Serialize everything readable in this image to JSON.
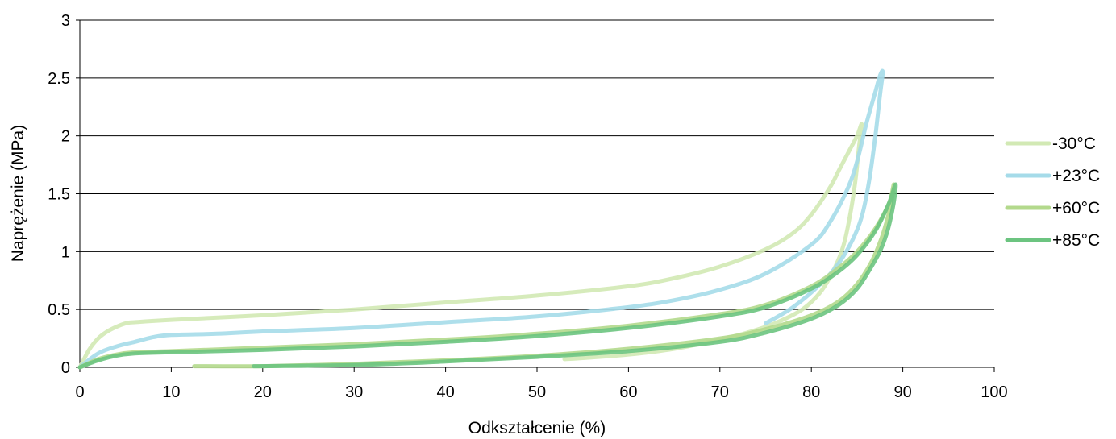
{
  "chart_data": {
    "type": "line",
    "title": "",
    "xlabel": "Odkształcenie (%)",
    "ylabel": "Naprężenie (MPa)",
    "xlim": [
      0,
      100
    ],
    "ylim": [
      0,
      3
    ],
    "x_ticks": [
      0,
      10,
      20,
      30,
      40,
      50,
      60,
      70,
      80,
      90,
      100
    ],
    "x_tick_labels": [
      "0",
      "10",
      "20",
      "30",
      "40",
      "50",
      "60",
      "70",
      "80",
      "90",
      "100"
    ],
    "y_ticks": [
      0,
      0.5,
      1,
      1.5,
      2,
      2.5,
      3
    ],
    "y_tick_labels": [
      "0",
      "0.5",
      "1",
      "1.5",
      "2",
      "2.5",
      "3"
    ],
    "grid": "horizontal",
    "legend_position": "right",
    "series": [
      {
        "name": "-30°C",
        "color": "#d2e9b4",
        "x": [
          0,
          1,
          2,
          3,
          4,
          5,
          6,
          10,
          20,
          30,
          40,
          50,
          60,
          65,
          70,
          75,
          78,
          80,
          82,
          83,
          84,
          85,
          85.5,
          85.2,
          84.8,
          84.2,
          83.5,
          82.5,
          81,
          79,
          76,
          73,
          70,
          65,
          60,
          55,
          53
        ],
        "y": [
          0,
          0.15,
          0.25,
          0.31,
          0.35,
          0.38,
          0.39,
          0.41,
          0.45,
          0.5,
          0.56,
          0.62,
          0.7,
          0.77,
          0.87,
          1.02,
          1.16,
          1.32,
          1.55,
          1.7,
          1.85,
          2.0,
          2.1,
          1.9,
          1.6,
          1.3,
          1.05,
          0.85,
          0.65,
          0.5,
          0.38,
          0.3,
          0.24,
          0.16,
          0.11,
          0.08,
          0.07
        ]
      },
      {
        "name": "+23°C",
        "color": "#a5dbe9",
        "x": [
          0,
          2,
          4,
          6,
          8,
          10,
          15,
          20,
          30,
          40,
          50,
          60,
          65,
          70,
          75,
          80,
          82,
          84,
          85,
          86,
          87,
          87.5,
          87.8,
          87.5,
          87.0,
          86.3,
          85.5,
          84.5,
          83,
          81,
          78,
          75
        ],
        "y": [
          0,
          0.12,
          0.18,
          0.22,
          0.26,
          0.28,
          0.29,
          0.31,
          0.34,
          0.39,
          0.44,
          0.52,
          0.58,
          0.67,
          0.81,
          1.06,
          1.25,
          1.55,
          1.78,
          2.1,
          2.38,
          2.52,
          2.55,
          2.35,
          2.0,
          1.6,
          1.3,
          1.1,
          0.9,
          0.72,
          0.52,
          0.38
        ]
      },
      {
        "name": "+60°C",
        "color": "#b3d98c",
        "x": [
          0,
          2,
          4,
          6,
          10,
          20,
          30,
          40,
          50,
          60,
          70,
          75,
          80,
          83,
          85,
          87,
          88.5,
          89,
          88.8,
          88.2,
          87.5,
          86.5,
          85,
          83,
          80,
          75,
          70,
          60,
          50,
          40,
          30,
          20,
          12.5
        ],
        "y": [
          0,
          0.07,
          0.11,
          0.13,
          0.14,
          0.17,
          0.2,
          0.24,
          0.29,
          0.36,
          0.46,
          0.54,
          0.7,
          0.86,
          1.0,
          1.2,
          1.42,
          1.58,
          1.45,
          1.25,
          1.08,
          0.9,
          0.72,
          0.57,
          0.45,
          0.33,
          0.25,
          0.16,
          0.1,
          0.06,
          0.03,
          0.01,
          0.01
        ]
      },
      {
        "name": "+85°C",
        "color": "#6cc480",
        "x": [
          0,
          2,
          4,
          6,
          10,
          20,
          30,
          40,
          50,
          60,
          70,
          75,
          80,
          83,
          85,
          87,
          88.5,
          89.2,
          89,
          88.4,
          87.6,
          86.5,
          85,
          83,
          80,
          75,
          70,
          60,
          50,
          40,
          30,
          19
        ],
        "y": [
          0,
          0.06,
          0.1,
          0.12,
          0.13,
          0.15,
          0.18,
          0.22,
          0.27,
          0.34,
          0.44,
          0.52,
          0.68,
          0.83,
          0.97,
          1.18,
          1.42,
          1.58,
          1.42,
          1.2,
          1.02,
          0.86,
          0.68,
          0.54,
          0.42,
          0.3,
          0.22,
          0.14,
          0.09,
          0.05,
          0.02,
          0.01
        ]
      }
    ]
  }
}
